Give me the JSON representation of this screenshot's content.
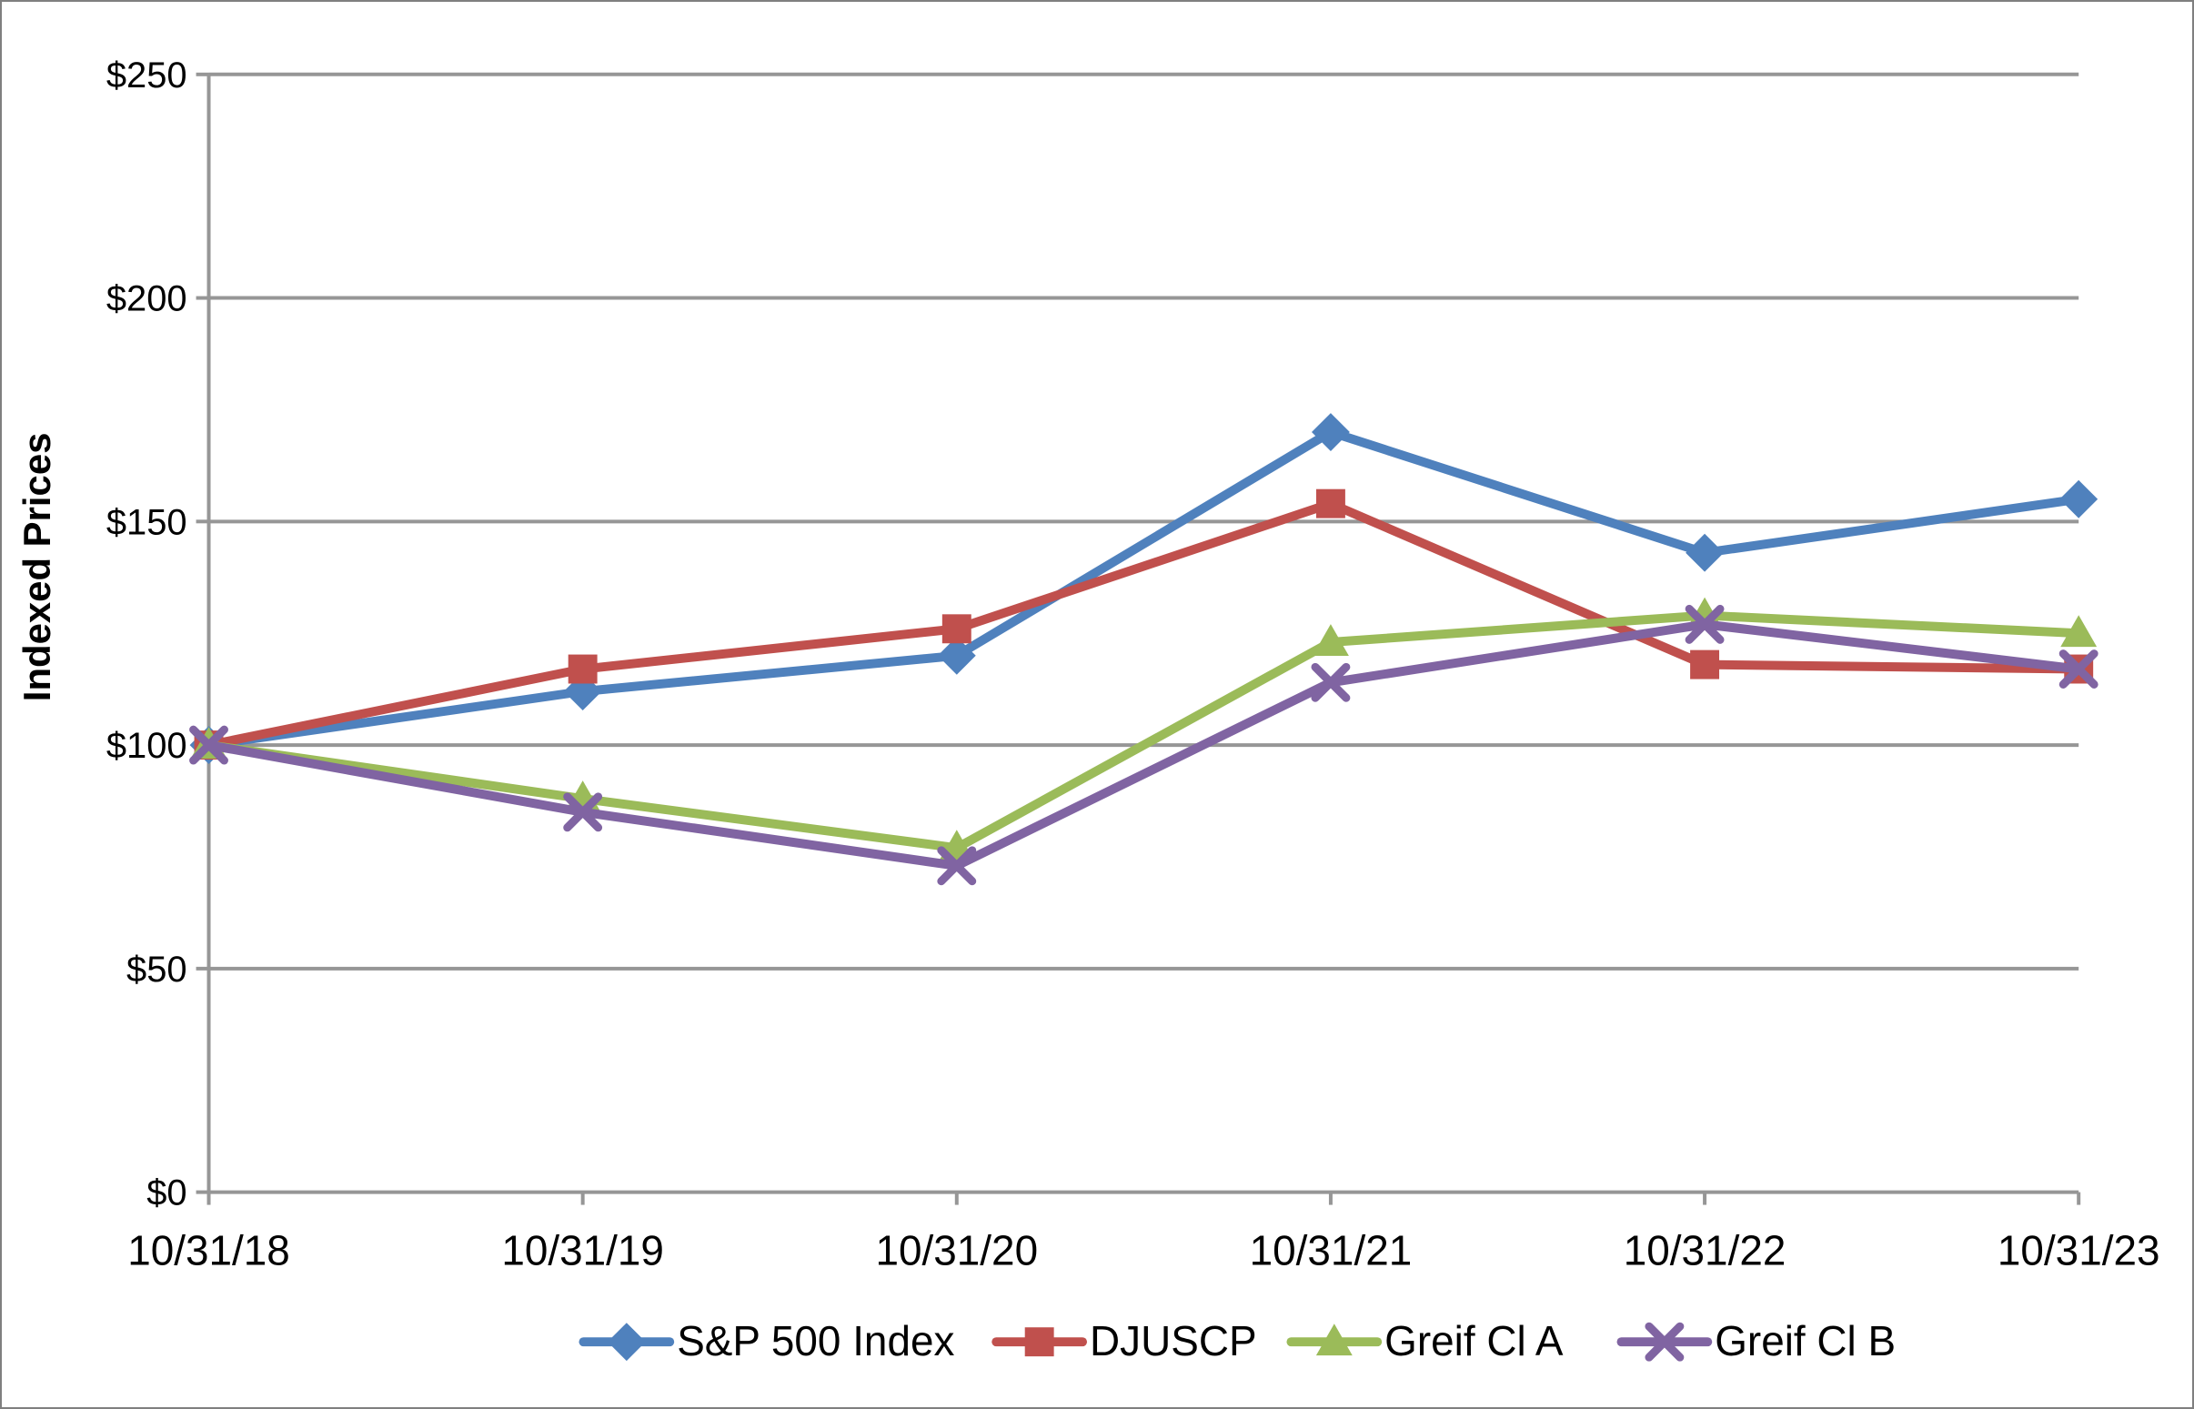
{
  "chart_data": {
    "type": "line",
    "title": "",
    "xlabel": "",
    "ylabel": "Indexed Prices",
    "ylim": [
      0,
      250
    ],
    "y_tick_values": [
      0,
      50,
      100,
      150,
      200,
      250
    ],
    "y_tick_labels": [
      "$0",
      "$50",
      "$100",
      "$150",
      "$200",
      "$250"
    ],
    "categories": [
      "10/31/18",
      "10/31/19",
      "10/31/20",
      "10/31/21",
      "10/31/22",
      "10/31/23"
    ],
    "grid": "horizontal",
    "legend_position": "bottom",
    "series": [
      {
        "name": "S&P 500 Index",
        "color": "#4F81BD",
        "marker": "diamond",
        "values": [
          100,
          112,
          120,
          170,
          143,
          155
        ]
      },
      {
        "name": "DJUSCP",
        "color": "#C0504D",
        "marker": "square",
        "values": [
          100,
          117,
          126,
          154,
          118,
          117
        ]
      },
      {
        "name": "Greif Cl A",
        "color": "#9BBB59",
        "marker": "triangle",
        "values": [
          100,
          88,
          77,
          123,
          129,
          125
        ]
      },
      {
        "name": "Greif Cl B",
        "color": "#8064A2",
        "marker": "x",
        "values": [
          100,
          85,
          73,
          114,
          127,
          117
        ]
      }
    ],
    "axis_color": "#969696",
    "border_color": "#808080"
  }
}
